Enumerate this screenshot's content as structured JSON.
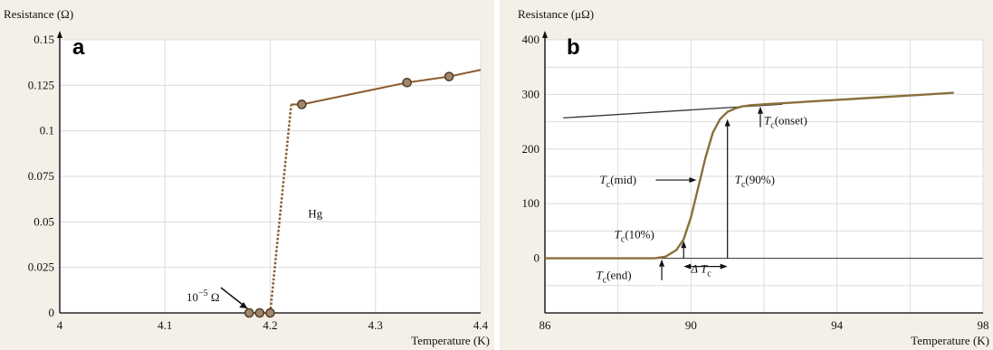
{
  "chart_data": [
    {
      "panel_label": "a",
      "type": "line",
      "ylabel": "Resistance (Ω)",
      "xlabel": "Temperature (K)",
      "xlim": [
        4.0,
        4.4
      ],
      "ylim": [
        0,
        0.15
      ],
      "x_ticks": [
        "4",
        "4.1",
        "4.2",
        "4.3",
        "4.4"
      ],
      "y_ticks": [
        "0",
        "0.025",
        "0.05",
        "0.075",
        "0.1",
        "0.125",
        "0.15"
      ],
      "grid": true,
      "series": [
        {
          "name": "Hg",
          "x": [
            4.18,
            4.19,
            4.2,
            4.22,
            4.23,
            4.33,
            4.37,
            4.4
          ],
          "values": [
            0,
            0,
            0,
            0.1145,
            0.1145,
            0.1265,
            0.1298,
            0.1335
          ],
          "markers_x": [
            4.18,
            4.19,
            4.2,
            4.23,
            4.33,
            4.37
          ],
          "markers_y": [
            0,
            0,
            0,
            0.1145,
            0.1265,
            0.1298
          ]
        }
      ],
      "annotations": [
        {
          "text": "Hg",
          "x": 4.236,
          "y": 0.0525
        },
        {
          "text": "10",
          "superscript": "−5",
          "suffix": " Ω",
          "x": 4.1,
          "y": 0.014,
          "arrow_to": [
            4.18,
            0.001
          ]
        }
      ],
      "colors": {
        "curve": "#8b5a2b",
        "marker": "#a0866b",
        "marker_stroke": "#4a3520"
      }
    },
    {
      "panel_label": "b",
      "type": "line",
      "ylabel": "Resistance (μΩ)",
      "xlabel": "Temperature (K)",
      "xlim": [
        86,
        98
      ],
      "ylim": [
        -100,
        400
      ],
      "x_ticks": [
        "86",
        "90",
        "94",
        "98"
      ],
      "y_ticks": [
        "0",
        "100",
        "200",
        "300",
        "400"
      ],
      "grid": true,
      "series": [
        {
          "name": "",
          "x": [
            86,
            89,
            89.3,
            89.6,
            89.8,
            90.0,
            90.2,
            90.4,
            90.6,
            90.8,
            91.0,
            91.2,
            91.4,
            91.6,
            91.8,
            92.0,
            93,
            94,
            95,
            96,
            97.2
          ],
          "values": [
            0,
            0,
            3,
            15,
            35,
            75,
            130,
            185,
            230,
            255,
            268,
            274,
            278,
            280,
            281,
            282,
            286,
            290,
            294,
            298,
            303
          ]
        }
      ],
      "extrapolation_line": {
        "x": [
          86.5,
          92.5
        ],
        "y": [
          257,
          282
        ]
      },
      "annotations": [
        {
          "text_main": "T",
          "text_sub": "c",
          "text_rest": "(onset)",
          "x": 92.0,
          "y": 245,
          "arrow_from": [
            91.9,
            240
          ],
          "arrow_to": [
            91.9,
            278
          ]
        },
        {
          "text_main": "T",
          "text_sub": "c",
          "text_rest": "(mid)",
          "x": 87.5,
          "y": 137,
          "arrow_to": [
            90.3,
            140
          ]
        },
        {
          "text_main": "T",
          "text_sub": "c",
          "text_rest": "(90%)",
          "x": 91.2,
          "y": 137,
          "vline_x": 91.0,
          "vline_y": [
            0,
            255
          ]
        },
        {
          "text_main": "T",
          "text_sub": "c",
          "text_rest": "(10%)",
          "x": 87.9,
          "y": 37,
          "arrow_from": [
            89.8,
            0
          ],
          "arrow_to": [
            89.8,
            32
          ]
        },
        {
          "text_main": "T",
          "text_sub": "c",
          "text_rest": "(end)",
          "x": 87.4,
          "y": -38,
          "arrow_from": [
            89.2,
            -40
          ],
          "arrow_to": [
            89.2,
            -2
          ]
        },
        {
          "text_main": "Δ T",
          "text_sub": "c",
          "text_rest": "",
          "x": 90.0,
          "y": -26,
          "arrow_from": [
            89.8,
            -15
          ],
          "arrow_to": [
            91.0,
            -15
          ]
        }
      ],
      "colors": {
        "curve": "#8b6f3a",
        "extrap": "#333333"
      }
    }
  ]
}
